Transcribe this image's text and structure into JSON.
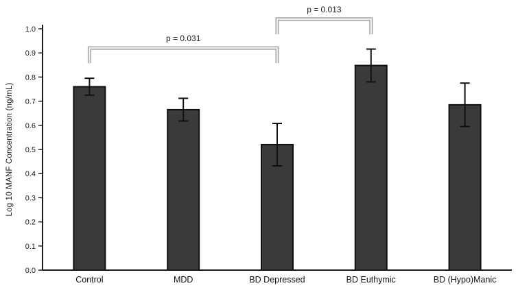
{
  "figure": {
    "background": "#ffffff"
  },
  "chart_data": {
    "type": "bar",
    "title": "",
    "categories": [
      "Control",
      "MDD",
      "BD Depressed",
      "BD Euthymic",
      "BD (Hypo)Manic"
    ],
    "values": [
      0.76,
      0.665,
      0.52,
      0.848,
      0.685
    ],
    "errors": [
      0.035,
      0.047,
      0.088,
      0.068,
      0.09
    ],
    "xlabel": "",
    "ylabel": "Log 10 MANF Concentration (ng/mL)",
    "ylim": [
      0.0,
      1.0
    ],
    "yticks": [
      0.0,
      0.1,
      0.2,
      0.3,
      0.4,
      0.5,
      0.6,
      0.7,
      0.8,
      0.9,
      1.0
    ],
    "grid": false,
    "legend": false,
    "bar_color": "#3a3a3c",
    "bar_border": "#101010",
    "error_color": "#111111",
    "axis_color": "#1a1a1a",
    "bracket_edge_color": "#9a9a9a",
    "bracket_fill_color": "#ececec",
    "annotations": [
      {
        "label": "p = 0.031",
        "from": "Control",
        "to": "BD Depressed",
        "from_index": 0,
        "to_index": 2,
        "y": 0.92
      },
      {
        "label": "p = 0.013",
        "from": "BD Depressed",
        "to": "BD Euthymic",
        "from_index": 2,
        "to_index": 3,
        "y": 1.04
      }
    ]
  }
}
